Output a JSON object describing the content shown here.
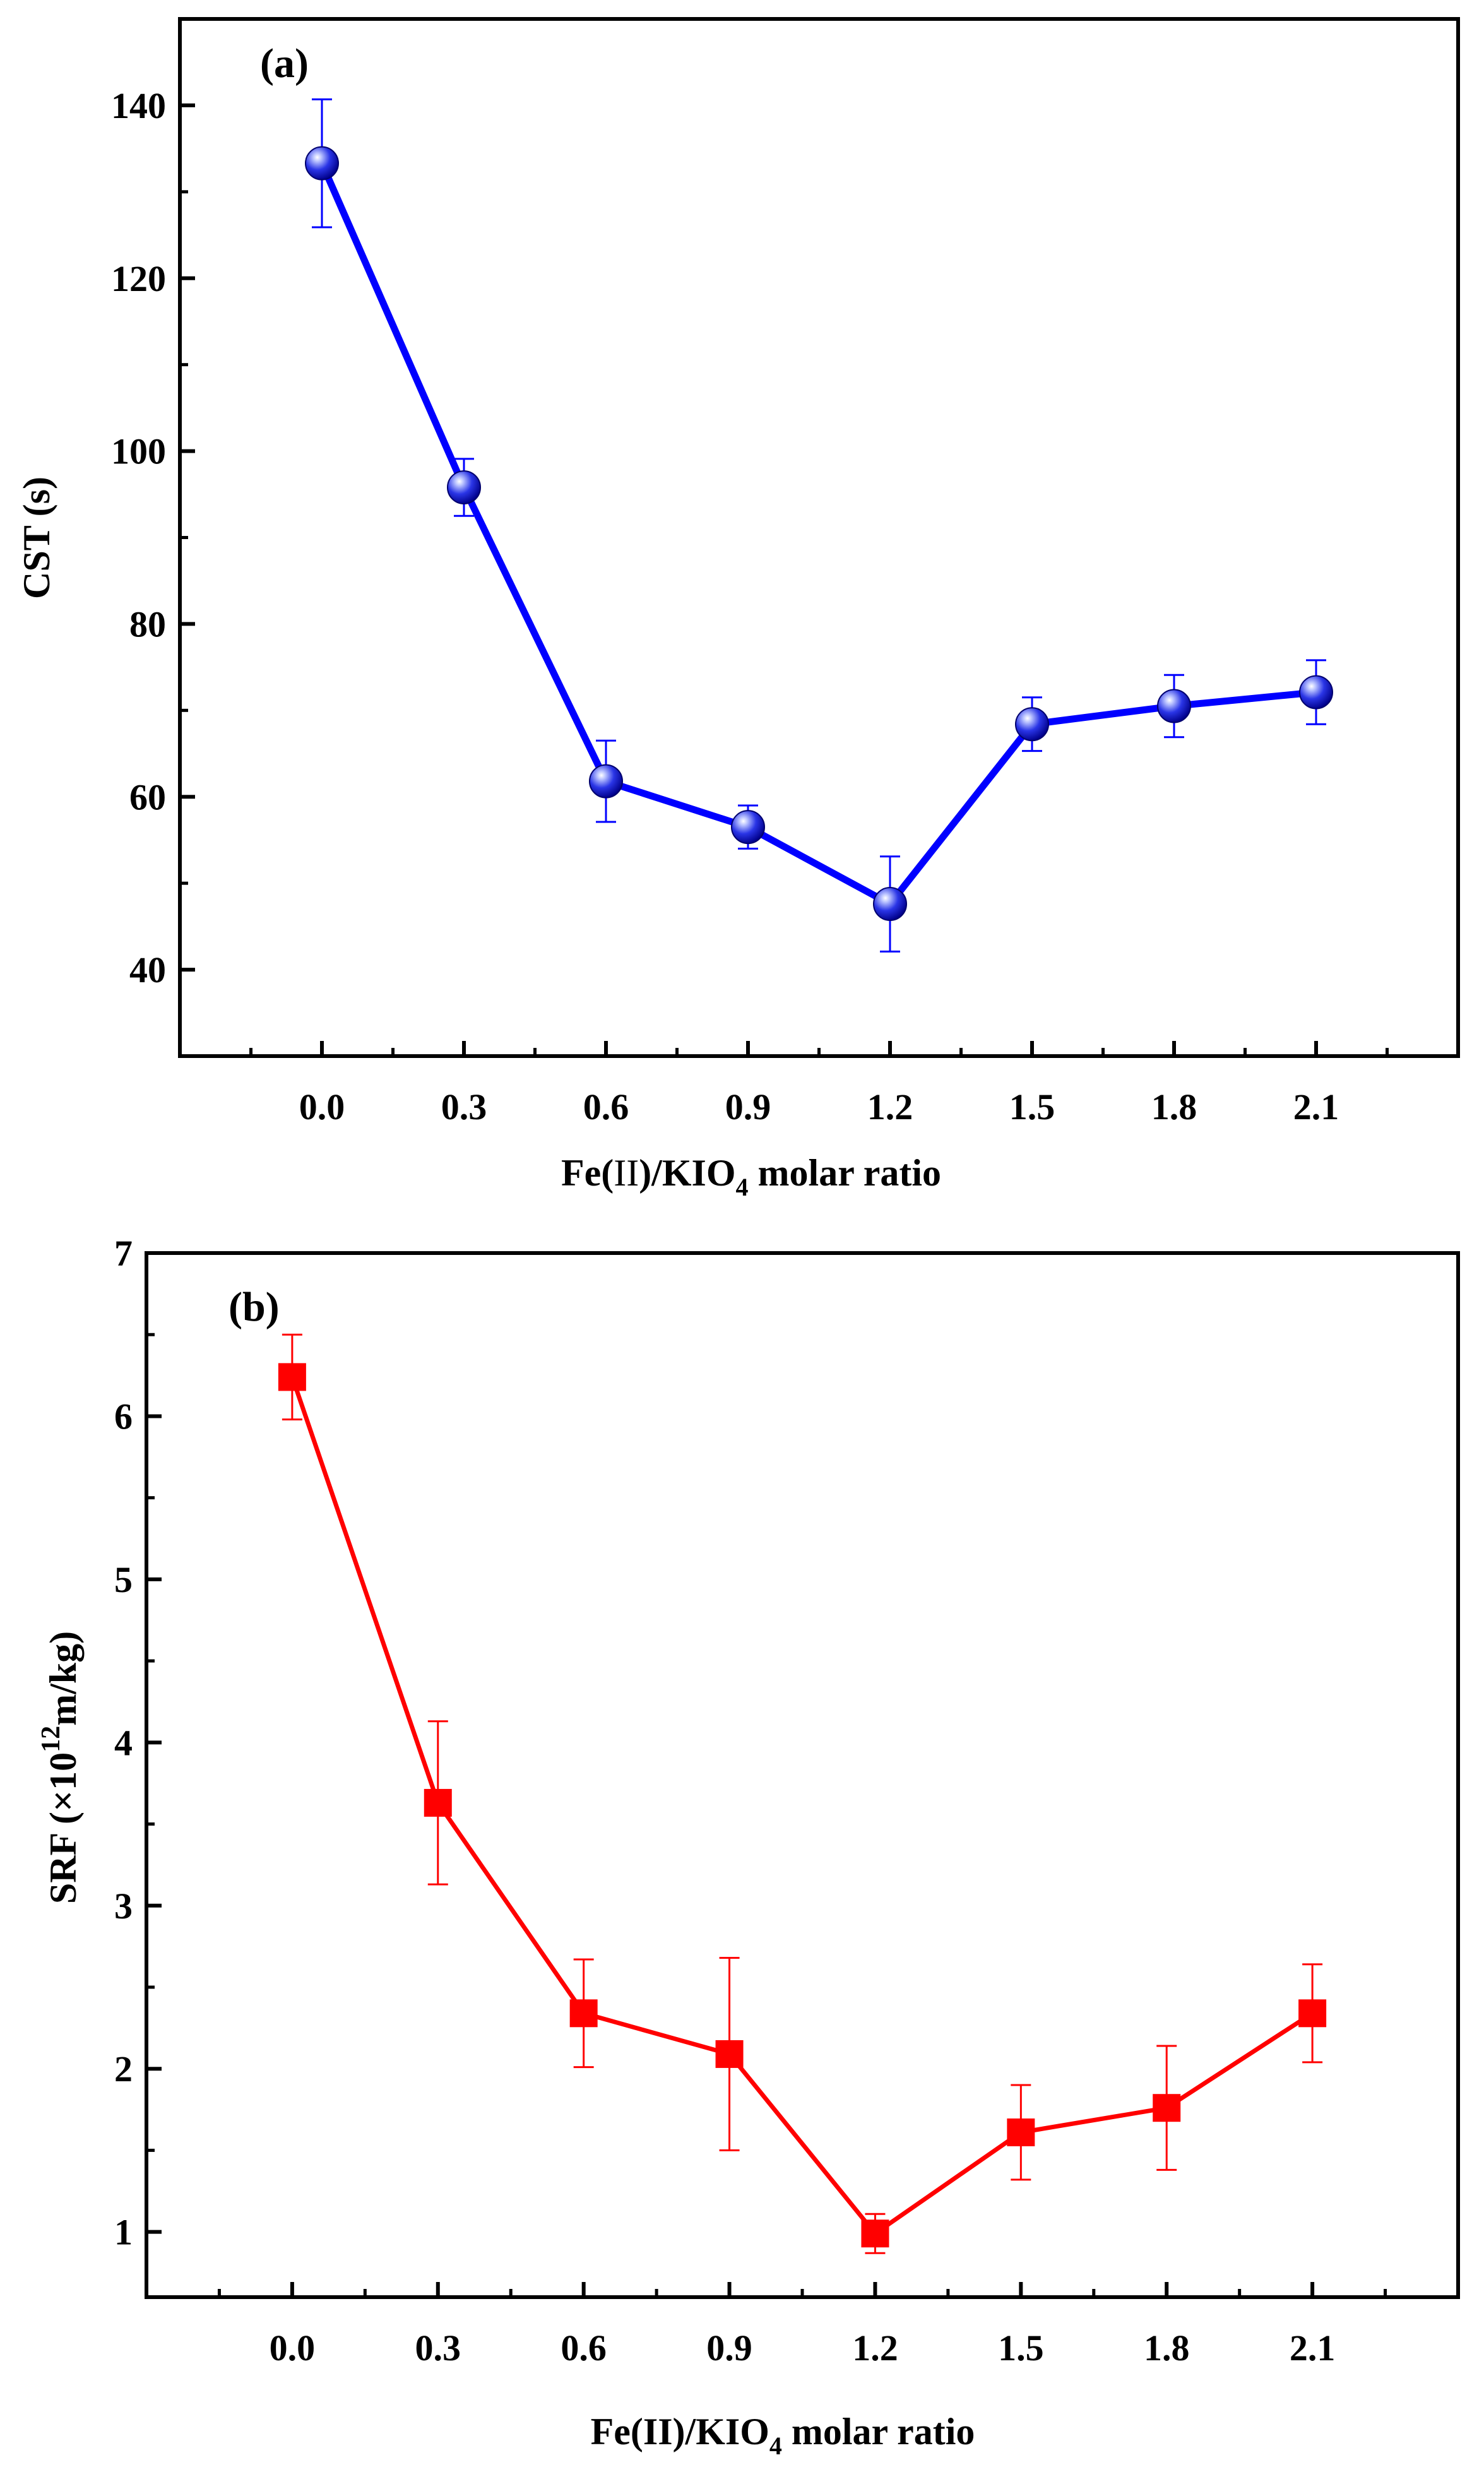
{
  "chart_data": [
    {
      "type": "line",
      "panel": "(a)",
      "xlabel": {
        "main": "Fe(",
        "roman": "II",
        "rest": ")/KIO",
        "sub": "4",
        "tail": " molar ratio"
      },
      "ylabel": "CST (s)",
      "xlim": [
        -0.3,
        2.4
      ],
      "ylim": [
        30,
        150
      ],
      "xticks": [
        "0.0",
        "0.3",
        "0.6",
        "0.9",
        "1.2",
        "1.5",
        "1.8",
        "2.1"
      ],
      "yticks": [
        "40",
        "60",
        "80",
        "100",
        "120",
        "140"
      ],
      "series": [
        {
          "name": "CST",
          "marker": "sphere",
          "color": "#0000ff",
          "x": [
            0.0,
            0.3,
            0.6,
            0.9,
            1.2,
            1.5,
            1.8,
            2.1
          ],
          "y": [
            133.3,
            95.8,
            61.8,
            56.5,
            47.6,
            68.4,
            70.5,
            72.1
          ],
          "error": [
            7.4,
            3.3,
            4.7,
            2.5,
            5.5,
            3.1,
            3.6,
            3.7
          ]
        }
      ]
    },
    {
      "type": "line",
      "panel": "(b)",
      "xlabel": {
        "main": "Fe(II)/KIO",
        "sub": "4",
        "tail": " molar ratio"
      },
      "ylabel": {
        "main": "SRF (×10",
        "sup": "12",
        "tail": "m/kg)"
      },
      "xlim": [
        -0.3,
        2.4
      ],
      "ylim": [
        0.6,
        7.0
      ],
      "xticks": [
        "0.0",
        "0.3",
        "0.6",
        "0.9",
        "1.2",
        "1.5",
        "1.8",
        "2.1"
      ],
      "yticks": [
        "1",
        "2",
        "3",
        "4",
        "5",
        "6",
        "7"
      ],
      "series": [
        {
          "name": "SRF",
          "marker": "square",
          "color": "#ff0000",
          "x": [
            0.0,
            0.3,
            0.6,
            0.9,
            1.2,
            1.5,
            1.8,
            2.1
          ],
          "y": [
            6.24,
            3.63,
            2.34,
            2.09,
            0.99,
            1.61,
            1.76,
            2.34
          ],
          "error": [
            0.26,
            0.5,
            0.33,
            0.59,
            0.12,
            0.29,
            0.38,
            0.3
          ]
        }
      ]
    }
  ]
}
